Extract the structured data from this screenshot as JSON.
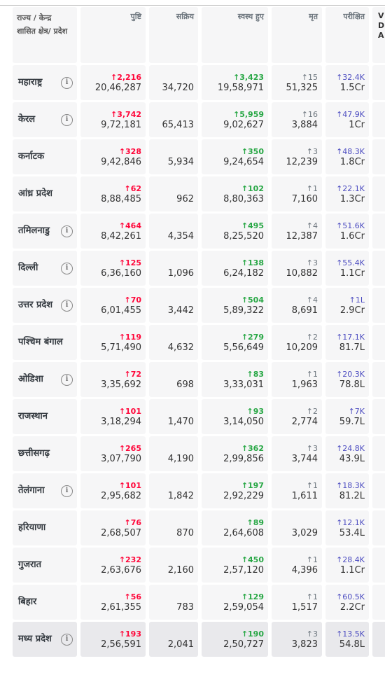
{
  "header": {
    "state": "राज्य / केन्द्र शासित क्षेत्र/ प्रदेश",
    "confirmed": "पुष्टि",
    "active": "सक्रिय",
    "recovered": "स्वस्थ हुए",
    "deceased": "मृत",
    "tested": "परीक्षित",
    "extra": "VDA"
  },
  "rows": [
    {
      "state": "महाराष्ट्र",
      "info": true,
      "confirmed": {
        "delta": "2,216",
        "total": "20,46,287"
      },
      "active": "34,720",
      "recovered": {
        "delta": "3,423",
        "total": "19,58,971"
      },
      "deceased": {
        "delta": "15",
        "total": "51,325"
      },
      "tested": {
        "delta": "32.4K",
        "total": "1.5Cr"
      }
    },
    {
      "state": "केरल",
      "info": true,
      "confirmed": {
        "delta": "3,742",
        "total": "9,72,181"
      },
      "active": "65,413",
      "recovered": {
        "delta": "5,959",
        "total": "9,02,627"
      },
      "deceased": {
        "delta": "16",
        "total": "3,884"
      },
      "tested": {
        "delta": "47.9K",
        "total": "1Cr"
      }
    },
    {
      "state": "कर्नाटक",
      "info": false,
      "confirmed": {
        "delta": "328",
        "total": "9,42,846"
      },
      "active": "5,934",
      "recovered": {
        "delta": "350",
        "total": "9,24,654"
      },
      "deceased": {
        "delta": "3",
        "total": "12,239"
      },
      "tested": {
        "delta": "48.3K",
        "total": "1.8Cr"
      }
    },
    {
      "state": "आंध्र प्रदेश",
      "info": false,
      "confirmed": {
        "delta": "62",
        "total": "8,88,485"
      },
      "active": "962",
      "recovered": {
        "delta": "102",
        "total": "8,80,363"
      },
      "deceased": {
        "delta": "1",
        "total": "7,160"
      },
      "tested": {
        "delta": "22.1K",
        "total": "1.3Cr"
      }
    },
    {
      "state": "तमिलनाडु",
      "info": true,
      "confirmed": {
        "delta": "464",
        "total": "8,42,261"
      },
      "active": "4,354",
      "recovered": {
        "delta": "495",
        "total": "8,25,520"
      },
      "deceased": {
        "delta": "4",
        "total": "12,387"
      },
      "tested": {
        "delta": "51.6K",
        "total": "1.6Cr"
      }
    },
    {
      "state": "दिल्ली",
      "info": true,
      "confirmed": {
        "delta": "125",
        "total": "6,36,160"
      },
      "active": "1,096",
      "recovered": {
        "delta": "138",
        "total": "6,24,182"
      },
      "deceased": {
        "delta": "3",
        "total": "10,882"
      },
      "tested": {
        "delta": "55.4K",
        "total": "1.1Cr"
      }
    },
    {
      "state": "उत्तर प्रदेश",
      "info": true,
      "confirmed": {
        "delta": "70",
        "total": "6,01,455"
      },
      "active": "3,442",
      "recovered": {
        "delta": "504",
        "total": "5,89,322"
      },
      "deceased": {
        "delta": "4",
        "total": "8,691"
      },
      "tested": {
        "delta": "1L",
        "total": "2.9Cr"
      }
    },
    {
      "state": "पश्चिम बंगाल",
      "info": false,
      "confirmed": {
        "delta": "119",
        "total": "5,71,490"
      },
      "active": "4,632",
      "recovered": {
        "delta": "279",
        "total": "5,56,649"
      },
      "deceased": {
        "delta": "2",
        "total": "10,209"
      },
      "tested": {
        "delta": "17.1K",
        "total": "81.7L"
      }
    },
    {
      "state": "ओडिशा",
      "info": true,
      "confirmed": {
        "delta": "72",
        "total": "3,35,692"
      },
      "active": "698",
      "recovered": {
        "delta": "83",
        "total": "3,33,031"
      },
      "deceased": {
        "delta": "1",
        "total": "1,963"
      },
      "tested": {
        "delta": "20.3K",
        "total": "78.8L"
      }
    },
    {
      "state": "राजस्थान",
      "info": false,
      "confirmed": {
        "delta": "101",
        "total": "3,18,294"
      },
      "active": "1,470",
      "recovered": {
        "delta": "93",
        "total": "3,14,050"
      },
      "deceased": {
        "delta": "2",
        "total": "2,774"
      },
      "tested": {
        "delta": "7K",
        "total": "59.7L"
      }
    },
    {
      "state": "छत्तीसगढ़",
      "info": false,
      "confirmed": {
        "delta": "265",
        "total": "3,07,790"
      },
      "active": "4,190",
      "recovered": {
        "delta": "362",
        "total": "2,99,856"
      },
      "deceased": {
        "delta": "3",
        "total": "3,744"
      },
      "tested": {
        "delta": "24.8K",
        "total": "43.9L"
      }
    },
    {
      "state": "तेलंगाना",
      "info": true,
      "confirmed": {
        "delta": "101",
        "total": "2,95,682"
      },
      "active": "1,842",
      "recovered": {
        "delta": "197",
        "total": "2,92,229"
      },
      "deceased": {
        "delta": "1",
        "total": "1,611"
      },
      "tested": {
        "delta": "18.3K",
        "total": "81.2L"
      }
    },
    {
      "state": "हरियाणा",
      "info": false,
      "confirmed": {
        "delta": "76",
        "total": "2,68,507"
      },
      "active": "870",
      "recovered": {
        "delta": "89",
        "total": "2,64,608"
      },
      "deceased": {
        "total": "3,029"
      },
      "tested": {
        "delta": "12.1K",
        "total": "53.4L"
      }
    },
    {
      "state": "गुजरात",
      "info": false,
      "confirmed": {
        "delta": "232",
        "total": "2,63,676"
      },
      "active": "2,160",
      "recovered": {
        "delta": "450",
        "total": "2,57,120"
      },
      "deceased": {
        "delta": "1",
        "total": "4,396"
      },
      "tested": {
        "delta": "28.4K",
        "total": "1.1Cr"
      }
    },
    {
      "state": "बिहार",
      "info": false,
      "confirmed": {
        "delta": "56",
        "total": "2,61,355"
      },
      "active": "783",
      "recovered": {
        "delta": "129",
        "total": "2,59,054"
      },
      "deceased": {
        "delta": "1",
        "total": "1,517"
      },
      "tested": {
        "delta": "60.5K",
        "total": "2.2Cr"
      }
    },
    {
      "state": "मध्य प्रदेश",
      "info": true,
      "highlight": true,
      "confirmed": {
        "delta": "193",
        "total": "2,56,591"
      },
      "active": "2,041",
      "recovered": {
        "delta": "190",
        "total": "2,50,727"
      },
      "deceased": {
        "delta": "3",
        "total": "3,823"
      },
      "tested": {
        "delta": "13.5K",
        "total": "54.8L"
      }
    }
  ]
}
